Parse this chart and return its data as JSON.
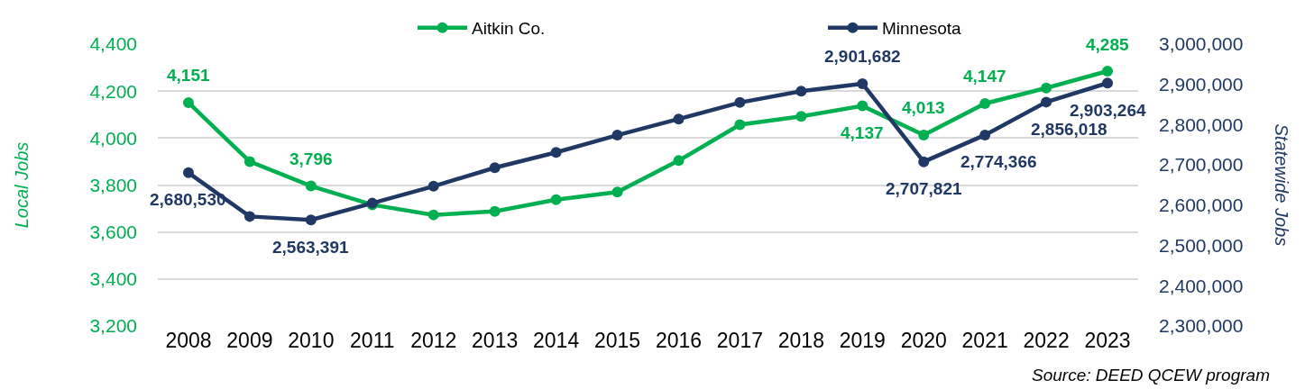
{
  "chart_data": {
    "type": "line",
    "categories": [
      "2008",
      "2009",
      "2010",
      "2011",
      "2012",
      "2013",
      "2014",
      "2015",
      "2016",
      "2017",
      "2018",
      "2019",
      "2020",
      "2021",
      "2022",
      "2023"
    ],
    "ylabel": "Local Jobs",
    "y2label": "Statewide Jobs",
    "ylim": [
      3200,
      4400
    ],
    "yticks": [
      {
        "value": 3200,
        "label": "3,200"
      },
      {
        "value": 3400,
        "label": "3,400"
      },
      {
        "value": 3600,
        "label": "3,600"
      },
      {
        "value": 3800,
        "label": "3,800"
      },
      {
        "value": 4000,
        "label": "4,000"
      },
      {
        "value": 4200,
        "label": "4,200"
      },
      {
        "value": 4400,
        "label": "4,400"
      }
    ],
    "y2lim": [
      2300000,
      3000000
    ],
    "y2ticks": [
      {
        "value": 2300000,
        "label": "2,300,000"
      },
      {
        "value": 2400000,
        "label": "2,400,000"
      },
      {
        "value": 2500000,
        "label": "2,500,000"
      },
      {
        "value": 2600000,
        "label": "2,600,000"
      },
      {
        "value": 2700000,
        "label": "2,700,000"
      },
      {
        "value": 2800000,
        "label": "2,800,000"
      },
      {
        "value": 2900000,
        "label": "2,900,000"
      },
      {
        "value": 3000000,
        "label": "3,000,000"
      }
    ],
    "series": [
      {
        "name": "Aitkin Co.",
        "color": "#00b050",
        "values": [
          4151,
          3900,
          3796,
          3716,
          3673,
          3688,
          3738,
          3770,
          3904,
          4057,
          4092,
          4137,
          4013,
          4147,
          4213,
          4285
        ],
        "value_labels": [
          "4,151",
          null,
          "3,796",
          null,
          null,
          null,
          null,
          null,
          null,
          null,
          null,
          "4,137",
          "4,013",
          "4,147",
          null,
          "4,285"
        ]
      },
      {
        "name": "Minnesota",
        "color": "#203864",
        "axis": "y2",
        "values": [
          2680530,
          2572000,
          2563391,
          2605000,
          2647000,
          2693000,
          2731000,
          2774000,
          2814000,
          2855000,
          2883000,
          2901682,
          2707821,
          2774366,
          2856018,
          2903264
        ],
        "value_labels": [
          "2,680,530",
          null,
          "2,563,391",
          null,
          null,
          null,
          null,
          null,
          null,
          null,
          null,
          "2,901,682",
          "2,707,821",
          "2,774,366",
          "2,856,018",
          "2,903,264"
        ]
      }
    ],
    "grid": "y",
    "legend": "top",
    "marker": "circle",
    "line_style": "solid",
    "annotations": [
      "Source: DEED QCEW program"
    ]
  }
}
